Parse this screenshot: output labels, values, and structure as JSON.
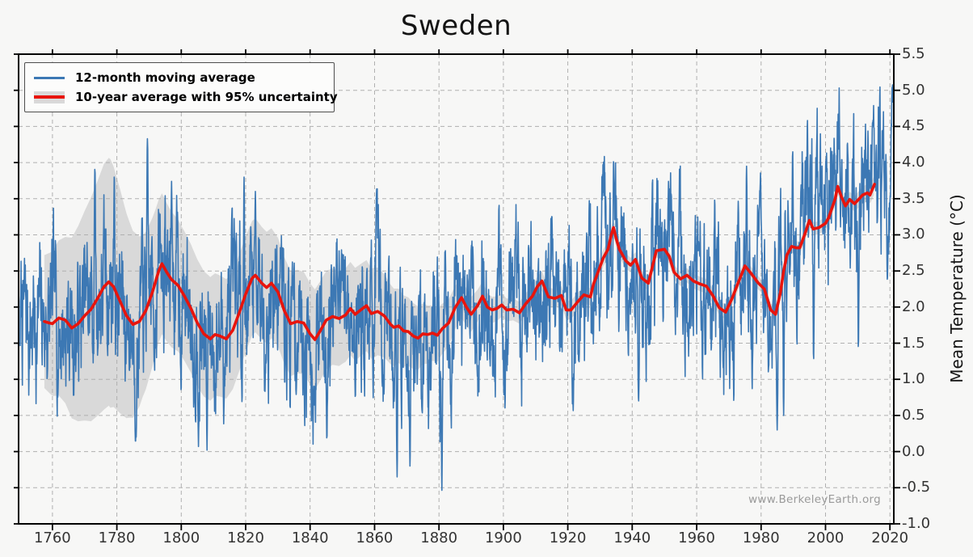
{
  "chart_data": {
    "type": "line",
    "title": "Sweden",
    "xlabel": "",
    "ylabel": "Mean Temperature (°C)",
    "watermark": "www.BerkeleyEarth.org",
    "x_range": [
      1749.5,
      2021.2
    ],
    "y_range": [
      -1.0,
      5.5
    ],
    "x_ticks": [
      1760,
      1780,
      1800,
      1820,
      1840,
      1860,
      1880,
      1900,
      1920,
      1940,
      1960,
      1980,
      2000,
      2020
    ],
    "y_ticks": [
      -1.0,
      -0.5,
      0.0,
      0.5,
      1.0,
      1.5,
      2.0,
      2.5,
      3.0,
      3.5,
      4.0,
      4.5,
      5.0,
      5.5
    ],
    "grid": "dashed",
    "legend_position": "upper-left",
    "colors": {
      "blue_line": "#3c78b4",
      "red_line": "#e8140c",
      "uncertainty_band": "#d9d9d9",
      "gridline": "#b0b0b0",
      "spine": "#000000",
      "tick_label": "#333333",
      "background": "#f7f7f6",
      "watermark": "#9a9a9a"
    },
    "series": [
      {
        "name": "12-month moving average",
        "type": "noisy_monthly_line",
        "color": "#3c78b4",
        "start": 1750.0,
        "end": 2020.95,
        "seed": 7,
        "ar": 0.78,
        "innovation": 1.3,
        "extremes": [
          [
            1773.2,
            3.95
          ],
          [
            1779.2,
            3.85
          ],
          [
            1786.0,
            0.2
          ],
          [
            1789.5,
            4.33
          ],
          [
            1797.0,
            3.74
          ],
          [
            1808.0,
            0.02
          ],
          [
            1819.5,
            3.8
          ],
          [
            1823.0,
            3.6
          ],
          [
            1867.0,
            -0.35
          ],
          [
            1871.0,
            -0.2
          ],
          [
            1880.9,
            -0.55
          ],
          [
            1934.2,
            4.05
          ],
          [
            1942.0,
            0.7
          ],
          [
            1975.5,
            3.95
          ],
          [
            1985.0,
            0.3
          ],
          [
            1987.0,
            0.5
          ],
          [
            1989.8,
            4.2
          ],
          [
            1996.3,
            1.25
          ],
          [
            2000.2,
            4.05
          ],
          [
            2006.8,
            4.3
          ],
          [
            2010.2,
            1.42
          ],
          [
            2014.6,
            4.55
          ],
          [
            2019.2,
            2.35
          ],
          [
            2020.7,
            5.05
          ]
        ]
      },
      {
        "name": "10-year average with 95% uncertainty",
        "type": "smoothed_line_with_band",
        "color": "#e8140c",
        "band_color": "#d9d9d9",
        "years": [
          1757.5,
          1759,
          1760,
          1762,
          1764,
          1766,
          1768,
          1770,
          1772,
          1774,
          1776,
          1777.5,
          1779,
          1781,
          1783,
          1785,
          1787,
          1789,
          1791,
          1793,
          1794,
          1795.5,
          1797,
          1799,
          1801,
          1803,
          1805,
          1807,
          1809,
          1810.5,
          1812,
          1814,
          1816,
          1818,
          1820,
          1822,
          1823,
          1825,
          1826.5,
          1828,
          1830,
          1832,
          1834,
          1836,
          1838,
          1840,
          1841.5,
          1843,
          1845,
          1847,
          1849,
          1851,
          1852.5,
          1854,
          1856,
          1857.5,
          1859,
          1861,
          1863,
          1865,
          1866,
          1867.5,
          1869,
          1870.5,
          1872,
          1873.5,
          1875,
          1876.5,
          1878,
          1879.5,
          1881,
          1883,
          1885,
          1887,
          1888.5,
          1890,
          1892,
          1893.5,
          1895,
          1896.5,
          1898,
          1899.5,
          1901,
          1903,
          1905,
          1907,
          1909,
          1910.5,
          1912,
          1913,
          1914,
          1916,
          1918,
          1919.5,
          1921,
          1923,
          1925,
          1927,
          1928,
          1929.5,
          1931,
          1932.5,
          1933.5,
          1934.2,
          1935,
          1936,
          1938,
          1939.5,
          1941,
          1943,
          1945,
          1946.5,
          1947.5,
          1950,
          1951.5,
          1953,
          1955,
          1957,
          1959,
          1961,
          1963,
          1965,
          1967,
          1969,
          1971,
          1973,
          1975,
          1977,
          1979,
          1981,
          1983,
          1984.5,
          1986,
          1987,
          1988,
          1989.5,
          1991,
          1992,
          1993.5,
          1995,
          1996.2,
          1998,
          2000,
          2001,
          2003,
          2003.8,
          2005,
          2006.2,
          2007.5,
          2009,
          2010.5,
          2011.5,
          2013,
          2013.8,
          2015.2
        ],
        "values": [
          1.8,
          1.78,
          1.77,
          1.85,
          1.82,
          1.71,
          1.77,
          1.88,
          1.97,
          2.12,
          2.28,
          2.35,
          2.28,
          2.08,
          1.88,
          1.76,
          1.8,
          1.95,
          2.2,
          2.5,
          2.6,
          2.48,
          2.38,
          2.3,
          2.15,
          1.98,
          1.78,
          1.63,
          1.56,
          1.62,
          1.6,
          1.56,
          1.68,
          1.92,
          2.18,
          2.4,
          2.44,
          2.33,
          2.27,
          2.33,
          2.21,
          1.95,
          1.77,
          1.8,
          1.78,
          1.63,
          1.55,
          1.66,
          1.82,
          1.87,
          1.84,
          1.89,
          1.98,
          1.9,
          1.97,
          2.02,
          1.91,
          1.94,
          1.88,
          1.76,
          1.72,
          1.74,
          1.67,
          1.66,
          1.6,
          1.57,
          1.63,
          1.62,
          1.64,
          1.61,
          1.7,
          1.78,
          1.99,
          2.13,
          2.0,
          1.9,
          2.02,
          2.15,
          2.0,
          1.96,
          1.98,
          2.03,
          1.96,
          1.97,
          1.92,
          2.05,
          2.15,
          2.28,
          2.36,
          2.25,
          2.14,
          2.12,
          2.16,
          1.96,
          1.96,
          2.07,
          2.17,
          2.14,
          2.32,
          2.5,
          2.68,
          2.8,
          3.0,
          3.1,
          2.95,
          2.8,
          2.64,
          2.58,
          2.66,
          2.4,
          2.33,
          2.6,
          2.78,
          2.8,
          2.7,
          2.48,
          2.39,
          2.44,
          2.36,
          2.32,
          2.29,
          2.16,
          1.99,
          1.93,
          2.12,
          2.35,
          2.57,
          2.46,
          2.34,
          2.25,
          1.96,
          1.9,
          2.2,
          2.5,
          2.72,
          2.84,
          2.82,
          2.82,
          3.0,
          3.2,
          3.08,
          3.1,
          3.16,
          3.24,
          3.5,
          3.67,
          3.52,
          3.4,
          3.49,
          3.43,
          3.5,
          3.55,
          3.58,
          3.55,
          3.7
        ],
        "uncertainty": {
          "years": [
            1757.5,
            1760,
            1764,
            1768,
            1772,
            1776,
            1778,
            1781,
            1784,
            1788,
            1792,
            1796,
            1800,
            1805,
            1810,
            1815,
            1820,
            1825,
            1830,
            1835,
            1840,
            1845,
            1850,
            1855,
            1860,
            1865,
            1870,
            1875,
            1880,
            1885,
            1890,
            1895,
            1900,
            1905,
            1910,
            1915,
            1920,
            1925,
            1930,
            1935,
            1940,
            1950,
            1960,
            1970,
            1980,
            1990,
            2000,
            2005,
            2010,
            2015.2
          ],
          "half_width": [
            0.92,
            1.0,
            1.15,
            1.35,
            1.55,
            1.7,
            1.72,
            1.55,
            1.35,
            1.12,
            1.0,
            0.95,
            0.9,
            0.88,
            0.85,
            0.82,
            0.8,
            0.78,
            0.75,
            0.72,
            0.7,
            0.68,
            0.65,
            0.64,
            0.62,
            0.55,
            0.48,
            0.42,
            0.36,
            0.3,
            0.24,
            0.19,
            0.16,
            0.15,
            0.14,
            0.13,
            0.13,
            0.12,
            0.12,
            0.11,
            0.1,
            0.1,
            0.1,
            0.1,
            0.09,
            0.09,
            0.09,
            0.1,
            0.11,
            0.13
          ]
        }
      }
    ]
  }
}
